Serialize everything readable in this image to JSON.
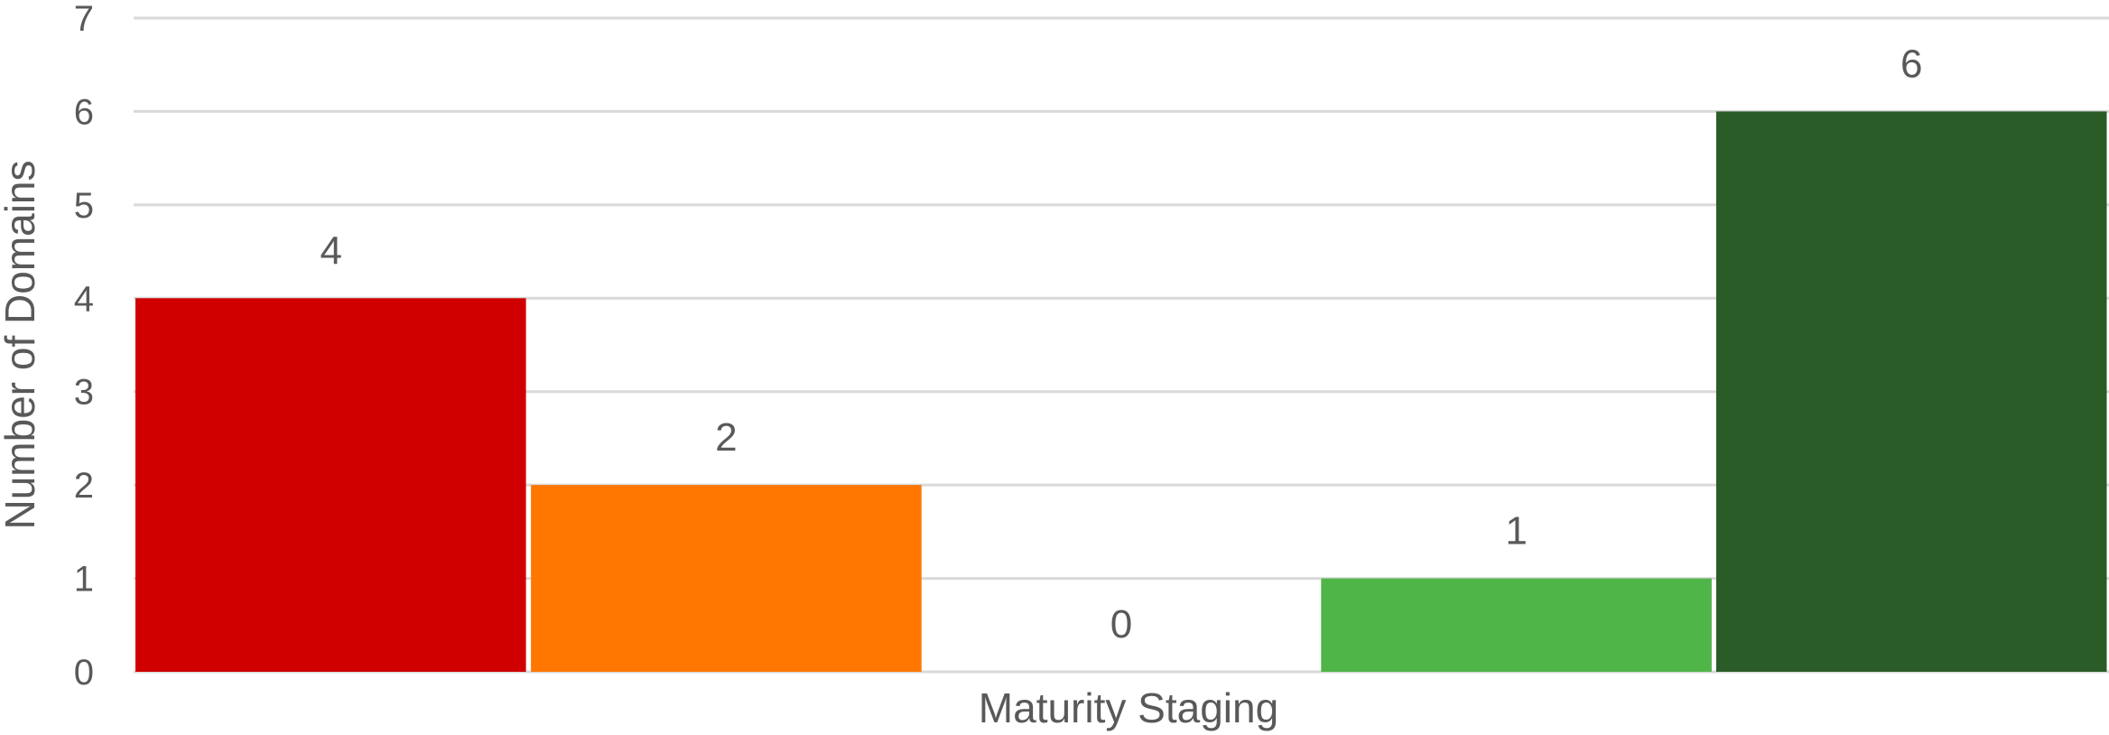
{
  "chart_data": {
    "type": "bar",
    "title": "",
    "xlabel": "Maturity Staging",
    "ylabel": "Number of Domains",
    "ylim": [
      0,
      7
    ],
    "yticks": [
      0,
      1,
      2,
      3,
      4,
      5,
      6,
      7
    ],
    "grid": true,
    "legend": "none",
    "values": [
      4,
      2,
      0,
      1,
      6
    ],
    "data_labels": [
      "4",
      "2",
      "0",
      "1",
      "6"
    ],
    "colors": [
      "#D00000",
      "#FF7700",
      "#FFC000",
      "#4FB548",
      "#2A5C27"
    ],
    "gridline_color": "#D9D9D9",
    "text_color": "#595959"
  }
}
